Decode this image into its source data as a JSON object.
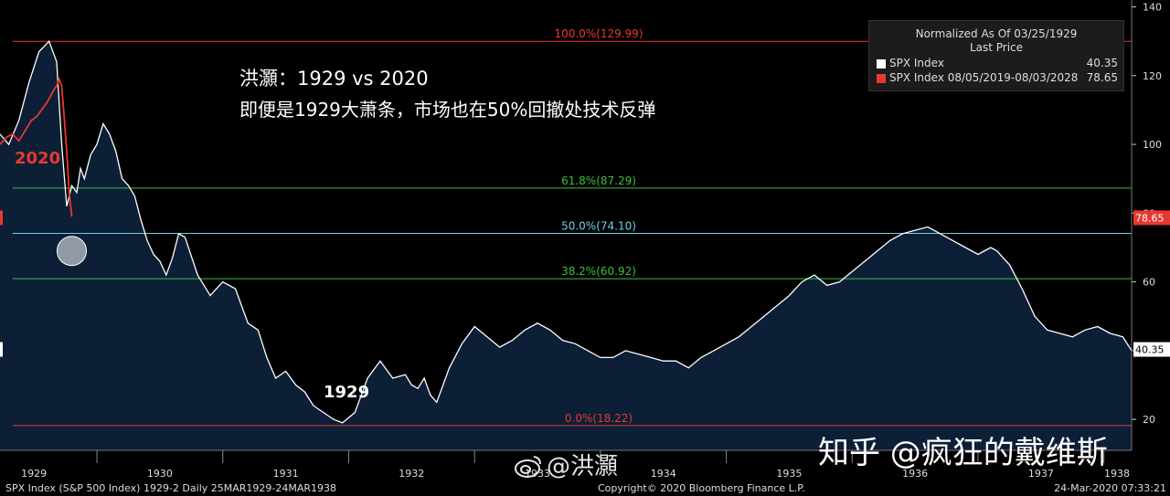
{
  "annotations": {
    "title_line1": "洪灝：1929 vs 2020",
    "title_line2": "即便是1929大萧条，市场也在50%回撤处技术反弹",
    "label_2020": "2020",
    "label_1929": "1929"
  },
  "legend": {
    "header1": "Normalized As Of 03/25/1929",
    "header2": "Last Price",
    "items": [
      {
        "name": "SPX Index",
        "value": "40.35",
        "color": "#ffffff"
      },
      {
        "name": "SPX Index 08/05/2019-08/03/2028",
        "value": "78.65",
        "color": "#e8382f"
      }
    ]
  },
  "footer": {
    "left": "SPX Index (S&P 500 Index) 1929-2  Daily 25MAR1929-24MAR1938",
    "middle": "Copyright© 2020 Bloomberg Finance L.P.",
    "right": "24-Mar-2020 07:33:21"
  },
  "watermarks": {
    "weibo": "@洪灝",
    "zhihu": "知乎 @疯狂的戴维斯"
  },
  "colors": {
    "background": "#000000",
    "area_fill": "#0c1f37",
    "line_1929": "#ffffff",
    "line_2020": "#e8382f",
    "fib_red": "#e8382f",
    "fib_green": "#3cbf3c",
    "fib_blue": "#6fd0e0"
  },
  "chart_data": {
    "type": "line",
    "x_ticks": [
      "1929",
      "1930",
      "1931",
      "1932",
      "1933",
      "1934",
      "1935",
      "1936",
      "1937",
      "1938"
    ],
    "y_ticks": [
      20,
      40,
      60,
      80,
      100,
      120,
      140
    ],
    "ylim": [
      11,
      142
    ],
    "xlim": [
      1929.23,
      1938.22
    ],
    "price_tags": [
      {
        "value": 78.65,
        "label": "78.65",
        "color": "#e8382f"
      },
      {
        "value": 40.35,
        "label": "40.35",
        "color": "#ffffff"
      }
    ],
    "fib_levels": [
      {
        "label": "100.0%(129.99)",
        "value": 129.99,
        "color": "#e8382f",
        "x_from": 1929.33
      },
      {
        "label": "61.8%(87.29)",
        "value": 87.29,
        "color": "#3cbf3c",
        "x_from": 1929.33
      },
      {
        "label": "50.0%(74.10)",
        "value": 74.1,
        "color": "#6fd0e0",
        "x_from": 1929.33
      },
      {
        "label": "38.2%(60.92)",
        "value": 60.92,
        "color": "#3cbf3c",
        "x_from": 1929.33
      },
      {
        "label": "0.0%(18.22)",
        "value": 18.22,
        "color": "#e8382f",
        "x_from": 1929.33
      }
    ],
    "series": [
      {
        "name": "SPX Index",
        "x": [
          1929.23,
          1929.3,
          1929.38,
          1929.46,
          1929.54,
          1929.62,
          1929.68,
          1929.72,
          1929.76,
          1929.8,
          1929.84,
          1929.87,
          1929.9,
          1929.95,
          1930.0,
          1930.05,
          1930.1,
          1930.15,
          1930.2,
          1930.25,
          1930.3,
          1930.35,
          1930.4,
          1930.45,
          1930.5,
          1930.55,
          1930.6,
          1930.65,
          1930.7,
          1930.8,
          1930.9,
          1931.0,
          1931.1,
          1931.2,
          1931.28,
          1931.35,
          1931.42,
          1931.5,
          1931.58,
          1931.65,
          1931.72,
          1931.8,
          1931.88,
          1931.95,
          1932.05,
          1932.15,
          1932.25,
          1932.35,
          1932.45,
          1932.5,
          1932.55,
          1932.6,
          1932.65,
          1932.7,
          1932.8,
          1932.9,
          1933.0,
          1933.1,
          1933.2,
          1933.3,
          1933.4,
          1933.5,
          1933.6,
          1933.7,
          1933.8,
          1933.9,
          1934.0,
          1934.1,
          1934.2,
          1934.3,
          1934.4,
          1934.5,
          1934.6,
          1934.7,
          1934.8,
          1934.9,
          1935.0,
          1935.1,
          1935.2,
          1935.3,
          1935.4,
          1935.5,
          1935.6,
          1935.7,
          1935.8,
          1935.9,
          1936.0,
          1936.1,
          1936.2,
          1936.3,
          1936.4,
          1936.5,
          1936.6,
          1936.7,
          1936.8,
          1936.9,
          1937.0,
          1937.1,
          1937.15,
          1937.2,
          1937.25,
          1937.35,
          1937.45,
          1937.55,
          1937.65,
          1937.75,
          1937.85,
          1937.95,
          1938.05,
          1938.15,
          1938.22
        ],
        "y": [
          103,
          100,
          107,
          118,
          127,
          130,
          124,
          100,
          82,
          88,
          86,
          93,
          90,
          97,
          100,
          106,
          103,
          98,
          90,
          88,
          85,
          78,
          72,
          68,
          66,
          62,
          67,
          74,
          73,
          62,
          56,
          60,
          58,
          48,
          46,
          38,
          32,
          34,
          30,
          28,
          24,
          22,
          20,
          19,
          22,
          32,
          37,
          32,
          33,
          30,
          29,
          32,
          27,
          25,
          35,
          42,
          47,
          44,
          41,
          43,
          46,
          48,
          46,
          43,
          42,
          40,
          38,
          38,
          40,
          39,
          38,
          37,
          37,
          35,
          38,
          40,
          42,
          44,
          47,
          50,
          53,
          56,
          60,
          62,
          59,
          60,
          63,
          66,
          69,
          72,
          74,
          75,
          76,
          74,
          72,
          70,
          68,
          70,
          69,
          67,
          65,
          58,
          50,
          46,
          45,
          44,
          46,
          47,
          45,
          44,
          40
        ]
      },
      {
        "name": "SPX Index 08/05/2019-08/03/2028",
        "x": [
          1929.23,
          1929.28,
          1929.33,
          1929.38,
          1929.43,
          1929.48,
          1929.52,
          1929.56,
          1929.6,
          1929.63,
          1929.66,
          1929.68,
          1929.7,
          1929.72,
          1929.74,
          1929.76,
          1929.78,
          1929.8
        ],
        "y": [
          100,
          102,
          103,
          101,
          104,
          107,
          108,
          110,
          112,
          114,
          116,
          117,
          119,
          117,
          108,
          98,
          86,
          79
        ]
      }
    ]
  }
}
